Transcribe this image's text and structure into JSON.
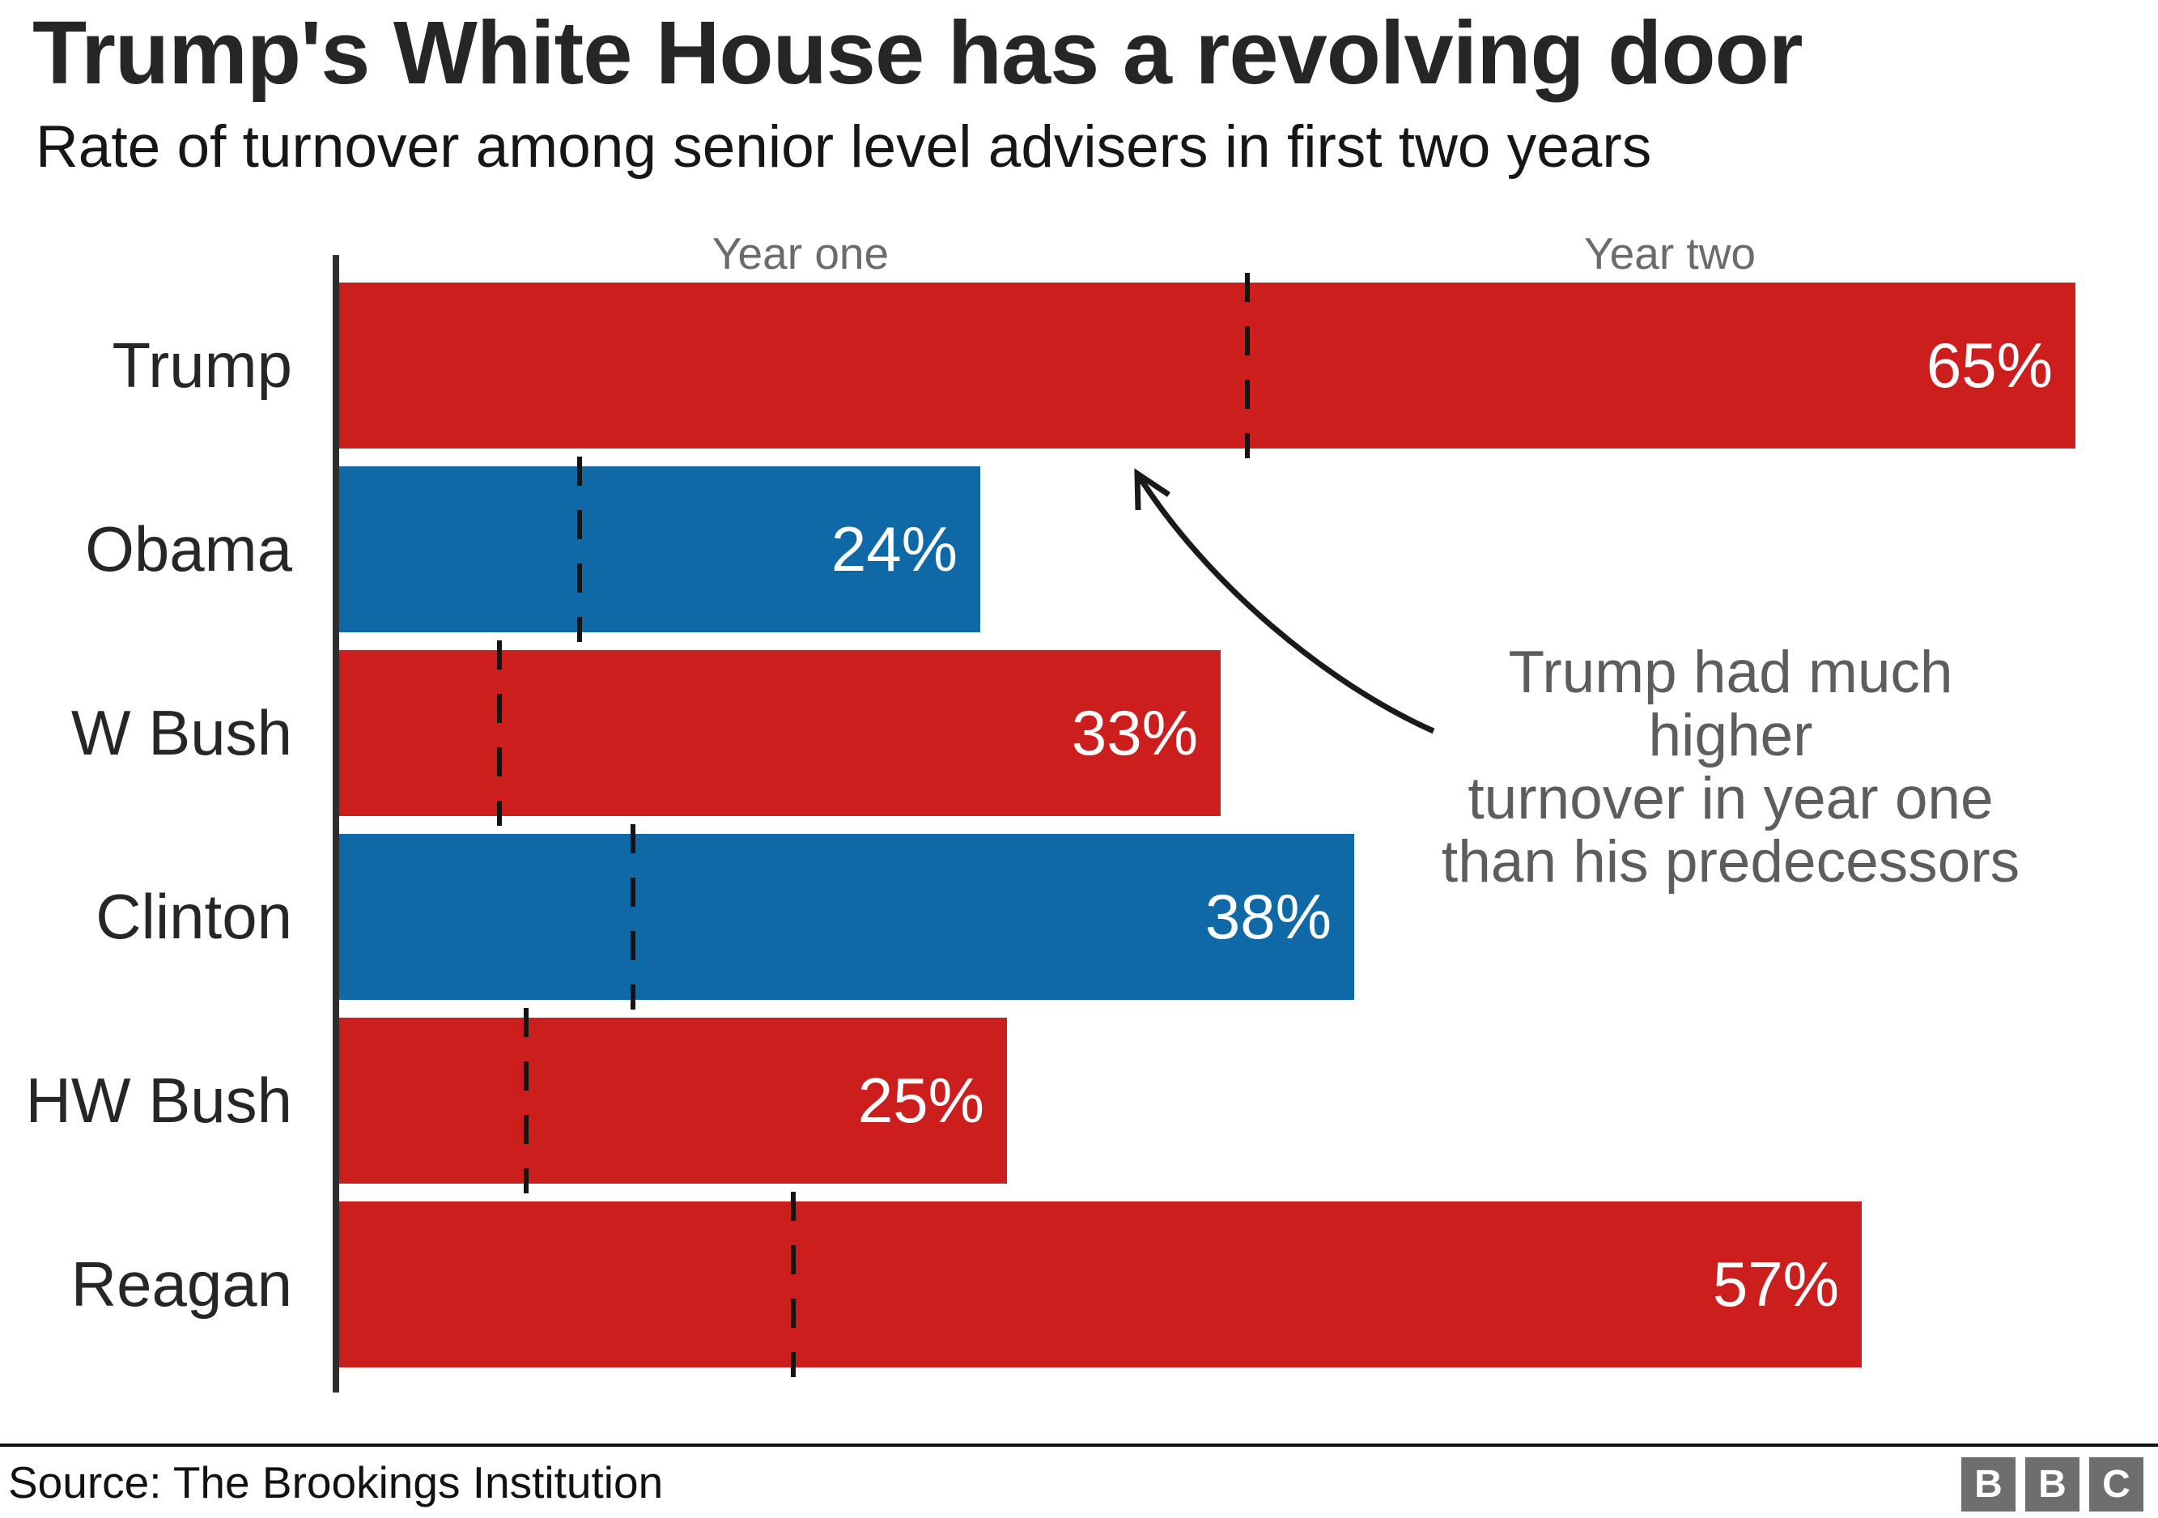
{
  "title": "Trump's White House has a revolving door",
  "subtitle": "Rate of turnover among senior level advisers in first two years",
  "chart_data": {
    "type": "bar",
    "orientation": "horizontal",
    "categories": [
      "Trump",
      "Obama",
      "W Bush",
      "Clinton",
      "HW Bush",
      "Reagan"
    ],
    "series": [
      {
        "name": "Turnover after two years",
        "values": [
          65,
          24,
          33,
          38,
          25,
          57
        ],
        "labels": [
          "65%",
          "24%",
          "33%",
          "38%",
          "25%",
          "57%"
        ]
      },
      {
        "name": "Turnover after year one (dashed marker)",
        "values": [
          34,
          9,
          6,
          11,
          7,
          17
        ]
      }
    ],
    "bar_colors": [
      "#cd1e1e",
      "#0e69a6",
      "#cd1e1e",
      "#0e69a6",
      "#cd1e1e",
      "#cd1e1e"
    ],
    "period_labels": {
      "year_one": "Year one",
      "year_two": "Year two"
    },
    "x_axis": {
      "min": 0,
      "max": 65,
      "unit": "%",
      "gridlines": false
    },
    "legend": "none",
    "annotation": {
      "lines": [
        "Trump had much higher",
        "turnover in year one",
        "than his predecessors"
      ]
    }
  },
  "colors": {
    "red_bar": "#cd1e1e",
    "blue_bar": "#0e69a6",
    "axis": "#2e2e2e",
    "dash_marker": "#141414",
    "year_label_gray": "#6b6b6b",
    "annotation_gray": "#5d5d5d",
    "bbc_logo_gray": "#6e6e6e"
  },
  "footer": {
    "source": "Source: The Brookings Institution",
    "logo_letters": [
      "B",
      "B",
      "C"
    ]
  }
}
